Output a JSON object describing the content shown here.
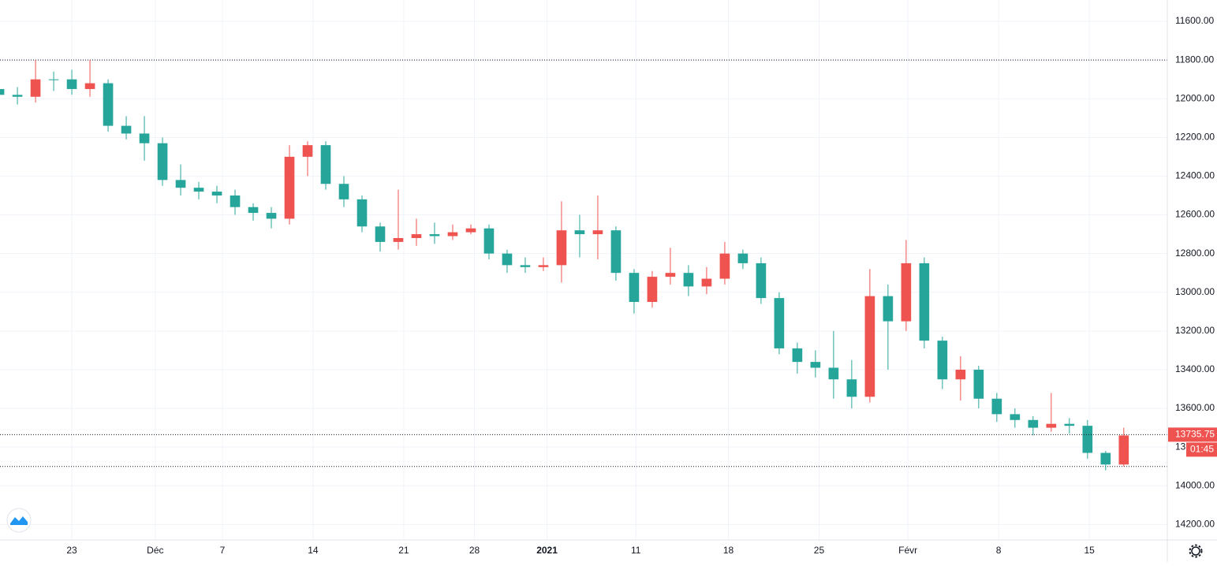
{
  "chart_data": {
    "type": "candlestick",
    "y_inverted": true,
    "grid": true,
    "up_color": "#26a69a",
    "down_color": "#ef5350",
    "xlim": [
      -3.96,
      60.4
    ],
    "ylim": [
      11490,
      14280
    ],
    "yticks": [
      {
        "value": 11600,
        "label": "11600.00"
      },
      {
        "value": 11800,
        "label": "11800.00"
      },
      {
        "value": 12000,
        "label": "12000.00"
      },
      {
        "value": 12200,
        "label": "12200.00"
      },
      {
        "value": 12400,
        "label": "12400.00"
      },
      {
        "value": 12600,
        "label": "12600.00"
      },
      {
        "value": 12800,
        "label": "12800.00"
      },
      {
        "value": 13000,
        "label": "13000.00"
      },
      {
        "value": 13200,
        "label": "13200.00"
      },
      {
        "value": 13400,
        "label": "13400.00"
      },
      {
        "value": 13600,
        "label": "13600.00"
      },
      {
        "value": 13800,
        "label": "13800.00"
      },
      {
        "value": 14000,
        "label": "14000.00"
      },
      {
        "value": 14200,
        "label": "14200.00"
      }
    ],
    "xticks": [
      {
        "value": 0,
        "label": "23"
      },
      {
        "value": 4.6,
        "label": "Déc"
      },
      {
        "value": 8.3,
        "label": "7"
      },
      {
        "value": 13.3,
        "label": "14"
      },
      {
        "value": 18.3,
        "label": "21"
      },
      {
        "value": 22.2,
        "label": "28"
      },
      {
        "value": 26.2,
        "label": "2021"
      },
      {
        "value": 31.1,
        "label": "11"
      },
      {
        "value": 36.2,
        "label": "18"
      },
      {
        "value": 41.2,
        "label": "25"
      },
      {
        "value": 46.1,
        "label": "Févr"
      },
      {
        "value": 51.1,
        "label": "8"
      },
      {
        "value": 56.1,
        "label": "15"
      }
    ],
    "x": [
      -4,
      -3,
      -2,
      -1,
      0,
      1,
      2,
      3,
      4,
      5,
      6,
      7,
      8,
      9,
      10,
      11,
      12,
      13,
      14,
      15,
      16,
      17,
      18,
      19,
      20,
      21,
      22,
      23,
      24,
      25,
      26,
      27,
      28,
      29,
      30,
      31,
      32,
      33,
      34,
      35,
      36,
      37,
      38,
      39,
      40,
      41,
      42,
      43,
      44,
      45,
      46,
      47,
      48,
      49,
      50,
      51,
      52,
      53,
      54,
      55,
      56,
      57,
      58
    ],
    "open": [
      11950,
      11980,
      11990,
      11900,
      11900,
      11950,
      11920,
      12140,
      12180,
      12230,
      12420,
      12460,
      12480,
      12500,
      12560,
      12590,
      12620,
      12300,
      12240,
      12440,
      12520,
      12660,
      12740,
      12720,
      12700,
      12710,
      12690,
      12670,
      12800,
      12860,
      12870,
      12860,
      12680,
      12700,
      12680,
      12900,
      13050,
      12920,
      12900,
      12970,
      12930,
      12800,
      12850,
      13030,
      13290,
      13360,
      13390,
      13450,
      13540,
      13020,
      13150,
      12850,
      13250,
      13450,
      13400,
      13550,
      13630,
      13660,
      13700,
      13680,
      13690,
      13830,
      13890
    ],
    "high": [
      12070,
      12030,
      12020,
      11960,
      11980,
      11990,
      12170,
      12210,
      12320,
      12450,
      12500,
      12520,
      12540,
      12600,
      12630,
      12670,
      12650,
      12400,
      12470,
      12560,
      12690,
      12790,
      12780,
      12760,
      12750,
      12730,
      12700,
      12830,
      12900,
      12900,
      12890,
      12950,
      12820,
      12830,
      12940,
      13110,
      13080,
      12960,
      13020,
      13010,
      12960,
      12880,
      13060,
      13320,
      13420,
      13440,
      13550,
      13600,
      13570,
      13400,
      13200,
      13290,
      13500,
      13560,
      13600,
      13670,
      13700,
      13740,
      13720,
      13730,
      13860,
      13920,
      13900
    ],
    "low": [
      11920,
      11940,
      11800,
      11860,
      11850,
      11800,
      11900,
      12090,
      12090,
      12200,
      12340,
      12430,
      12450,
      12470,
      12540,
      12560,
      12240,
      12220,
      12220,
      12400,
      12500,
      12640,
      12470,
      12620,
      12640,
      12650,
      12650,
      12650,
      12780,
      12820,
      12820,
      12530,
      12600,
      12500,
      12660,
      12880,
      12890,
      12770,
      12860,
      12870,
      12740,
      12780,
      12820,
      13000,
      13260,
      13300,
      13200,
      13350,
      12880,
      12960,
      12730,
      12820,
      13230,
      13330,
      13380,
      13520,
      13600,
      13640,
      13520,
      13650,
      13660,
      13820,
      13700
    ],
    "close": [
      11980,
      11990,
      11900,
      11900,
      11950,
      11920,
      12140,
      12180,
      12230,
      12420,
      12460,
      12480,
      12500,
      12560,
      12590,
      12620,
      12300,
      12240,
      12440,
      12520,
      12660,
      12740,
      12720,
      12700,
      12710,
      12690,
      12670,
      12800,
      12860,
      12870,
      12860,
      12680,
      12700,
      12680,
      12900,
      13050,
      12920,
      12900,
      12970,
      12930,
      12800,
      12850,
      13030,
      13290,
      13360,
      13390,
      13450,
      13540,
      13020,
      13150,
      12850,
      13250,
      13450,
      13400,
      13550,
      13630,
      13660,
      13700,
      13680,
      13690,
      13830,
      13890,
      13740
    ],
    "hlines": [
      11800,
      13900
    ],
    "last_price": 13735.75,
    "countdown": "01:45"
  }
}
